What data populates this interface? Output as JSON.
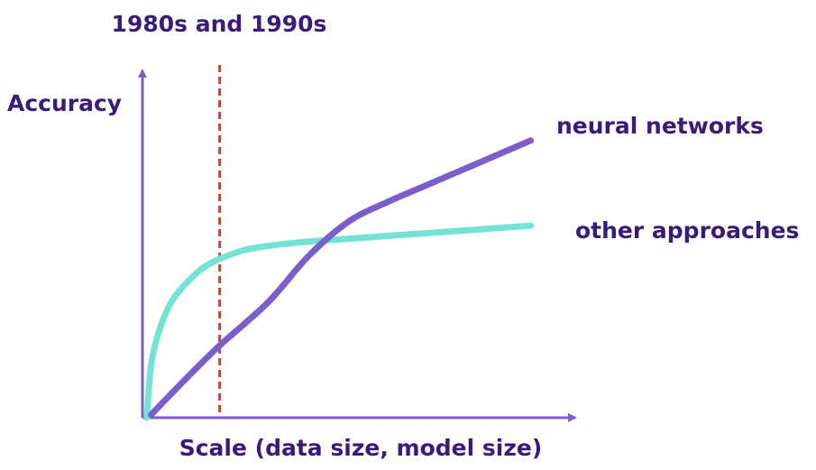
{
  "chart_data": {
    "type": "line",
    "annotation": "1980s and 1990s",
    "ylabel": "Accuracy",
    "xlabel": "Scale (data size, model size)",
    "xlim": [
      0,
      100
    ],
    "ylim": [
      0,
      100
    ],
    "marker_x": 18,
    "series": [
      {
        "name": "neural networks",
        "color": "#7a5fcc",
        "x": [
          1,
          10,
          18,
          30,
          40,
          50,
          60,
          70,
          80,
          90,
          95
        ],
        "y": [
          1,
          14,
          25,
          40,
          56,
          68,
          75,
          81,
          87,
          93,
          96
        ]
      },
      {
        "name": "other approaches",
        "color": "#74e3d4",
        "x": [
          0,
          1,
          3,
          6,
          10,
          14,
          18,
          24,
          30,
          40,
          50,
          60,
          70,
          80,
          90,
          95
        ],
        "y": [
          0,
          18,
          30,
          40,
          47,
          52,
          55,
          58,
          59.5,
          61,
          62,
          63,
          64,
          65,
          66,
          66.5
        ]
      }
    ]
  }
}
